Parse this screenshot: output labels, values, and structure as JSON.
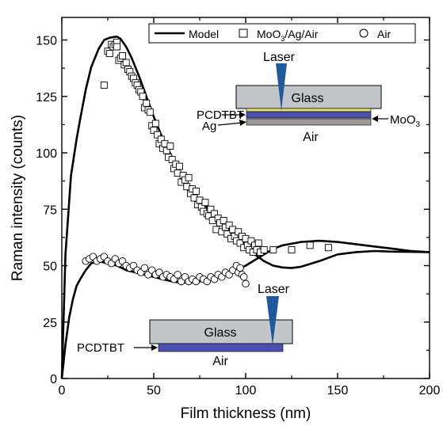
{
  "chart_data": {
    "type": "scatter",
    "xlabel": "Film thickness (nm)",
    "ylabel": "Raman intensity (counts)",
    "xlim": [
      0,
      200
    ],
    "ylim": [
      0,
      160
    ],
    "x_ticks": [
      0,
      50,
      100,
      150,
      200
    ],
    "y_ticks": [
      0,
      25,
      50,
      75,
      100,
      125,
      150
    ],
    "legend": {
      "placement": "top-right",
      "entries": [
        {
          "label": "Model",
          "marker": "line"
        },
        {
          "label_main": "MoO",
          "label_sub": "3",
          "label_rest": "/Ag/Air",
          "marker": "square"
        },
        {
          "label": "Air",
          "marker": "circle"
        }
      ]
    },
    "series": [
      {
        "kind": "model",
        "x": [
          0,
          2,
          5,
          8,
          10,
          13,
          16,
          20,
          23,
          26,
          28,
          30,
          32,
          35,
          38,
          42,
          46,
          50,
          55,
          60,
          65,
          70,
          75,
          80,
          85,
          90,
          95,
          100,
          105,
          110,
          115,
          120,
          125,
          130,
          140,
          150,
          160,
          170,
          180,
          190,
          200
        ],
        "y": [
          0,
          55,
          90,
          106,
          115,
          128,
          138,
          146,
          150,
          151,
          151.3,
          151.5,
          150.5,
          147,
          142,
          134,
          125,
          116,
          106,
          98,
          90,
          84,
          79,
          75,
          71,
          67,
          63,
          59,
          55,
          52,
          50,
          49.2,
          49,
          49.5,
          52,
          55,
          56,
          56.5,
          56.2,
          56.1,
          56
        ]
      },
      {
        "kind": "model",
        "x": [
          0,
          2,
          4,
          6,
          8,
          10,
          13,
          16,
          20,
          25,
          30,
          35,
          40,
          45,
          50,
          55,
          60,
          65,
          70,
          75,
          80,
          85,
          90,
          95,
          100,
          105,
          110,
          115,
          120,
          130,
          140,
          150,
          160,
          170,
          180,
          190,
          200
        ],
        "y": [
          0,
          15,
          27,
          35,
          41,
          44,
          48,
          51,
          52,
          51,
          50,
          48,
          47,
          46,
          45,
          44,
          43,
          42.5,
          42.5,
          43,
          44,
          45,
          46.5,
          48,
          50,
          52.5,
          55,
          57.5,
          59,
          60.5,
          61,
          60.5,
          59.5,
          58.5,
          57.5,
          56.5,
          56
        ]
      },
      {
        "kind": "moo3_ag_air",
        "marker": "square",
        "x": [
          23,
          25,
          26,
          27,
          28,
          29,
          30,
          30,
          31,
          32,
          33,
          34,
          35,
          36,
          37,
          38,
          39,
          40,
          41,
          42,
          43,
          44,
          45,
          46,
          47,
          48,
          49,
          50,
          51,
          52,
          53,
          54,
          55,
          56,
          57,
          58,
          59,
          60,
          61,
          62,
          63,
          64,
          65,
          66,
          67,
          68,
          69,
          70,
          71,
          72,
          73,
          74,
          75,
          76,
          77,
          78,
          79,
          80,
          81,
          82,
          83,
          84,
          85,
          86,
          87,
          88,
          89,
          90,
          91,
          92,
          93,
          94,
          95,
          96,
          97,
          98,
          99,
          100,
          101,
          102,
          103,
          104,
          105,
          106,
          107,
          108,
          110,
          115,
          125,
          135,
          145
        ],
        "y": [
          130,
          145,
          144,
          148,
          147,
          148,
          149,
          147,
          141,
          142,
          143,
          139,
          140,
          137,
          136,
          134,
          133,
          131,
          130,
          128,
          127,
          125,
          120,
          122,
          119,
          118,
          112,
          110,
          113,
          108,
          104,
          106,
          102,
          104,
          101,
          98,
          103,
          97,
          93,
          95,
          91,
          94,
          87,
          90,
          88,
          85,
          89,
          82,
          84,
          80,
          83,
          77,
          79,
          76,
          74,
          78,
          73,
          72,
          75,
          70,
          73,
          66,
          71,
          69,
          65,
          70,
          67,
          64,
          68,
          62,
          66,
          63,
          61,
          65,
          60,
          63,
          58,
          62,
          59,
          57,
          61,
          56,
          59,
          57,
          60,
          56,
          57,
          57,
          57,
          59,
          58
        ]
      },
      {
        "kind": "air",
        "marker": "circle",
        "x": [
          13,
          15,
          17,
          19,
          21,
          23,
          25,
          27,
          29,
          31,
          33,
          35,
          37,
          39,
          41,
          43,
          45,
          47,
          49,
          51,
          53,
          55,
          57,
          59,
          61,
          63,
          65,
          67,
          69,
          71,
          73,
          75,
          77,
          79,
          81,
          83,
          85,
          87,
          89,
          91,
          93,
          95,
          96,
          97,
          98,
          99,
          100
        ],
        "y": [
          52,
          53,
          54,
          52,
          53,
          54,
          52,
          51,
          53,
          51,
          52,
          50,
          49,
          50,
          48,
          47,
          49,
          46,
          48,
          46,
          47,
          45,
          46,
          45,
          44,
          46,
          43,
          45,
          43,
          44,
          43,
          45,
          44,
          43,
          45,
          44,
          46,
          45,
          47,
          46,
          48,
          50,
          47,
          49,
          46,
          45,
          42
        ]
      }
    ],
    "annotations": {
      "top_inset": {
        "laser": "Laser",
        "glass": "Glass",
        "pcdtbt": "PCDTBT",
        "ag": "Ag",
        "air": "Air",
        "moo3_main": "MoO",
        "moo3_sub": "3"
      },
      "bottom_inset": {
        "laser": "Laser",
        "glass": "Glass",
        "pcdtbt": "PCDTBT",
        "air": "Air"
      }
    },
    "colors": {
      "glass": "#c3c6c9",
      "pcdtbt": "#4a4fb0",
      "moo3": "#e6e070",
      "ag": "#9a9a9a",
      "laser": "#1f5a9e"
    }
  }
}
